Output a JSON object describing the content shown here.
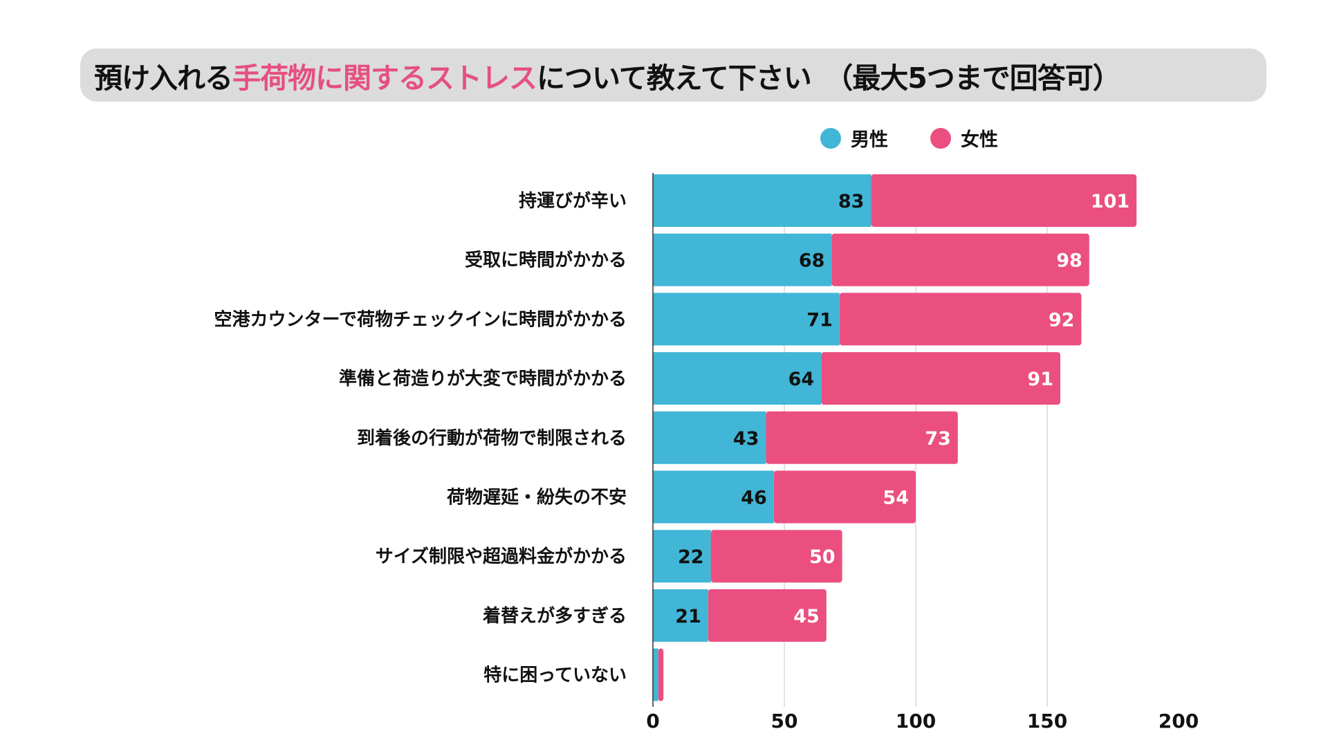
{
  "title": {
    "part1": "預け入れる",
    "highlight": "手荷物に関するストレス",
    "part2": "について教えて下さい　（最大5つまで回答可）"
  },
  "colors": {
    "male": "#41b6d6",
    "female": "#ea4f80",
    "title_highlight": "#e5507f",
    "title_bg": "#dcdcdd"
  },
  "chart_data": {
    "type": "bar",
    "orientation": "horizontal",
    "stacked": true,
    "title": "預け入れる手荷物に関するストレスについて教えて下さい　（最大5つまで回答可）",
    "categories": [
      "持運びが辛い",
      "受取に時間がかかる",
      "空港カウンターで荷物チェックインに時間がかかる",
      "準備と荷造りが大変で時間がかかる",
      "到着後の行動が荷物で制限される",
      "荷物遅延・紛失の不安",
      "サイズ制限や超過料金がかかる",
      "着替えが多すぎる",
      "特に困っていない"
    ],
    "series": [
      {
        "name": "男性",
        "values": [
          83,
          68,
          71,
          64,
          43,
          46,
          22,
          21,
          2
        ],
        "labels_shown": [
          true,
          true,
          true,
          true,
          true,
          true,
          true,
          true,
          false
        ]
      },
      {
        "name": "女性",
        "values": [
          101,
          98,
          92,
          91,
          73,
          54,
          50,
          45,
          2
        ],
        "labels_shown": [
          true,
          true,
          true,
          true,
          true,
          true,
          true,
          true,
          false
        ]
      }
    ],
    "xlim": [
      0,
      200
    ],
    "xticks": [
      "0",
      "50",
      "100",
      "150",
      "200"
    ],
    "grid": true,
    "legend": "top-right"
  }
}
